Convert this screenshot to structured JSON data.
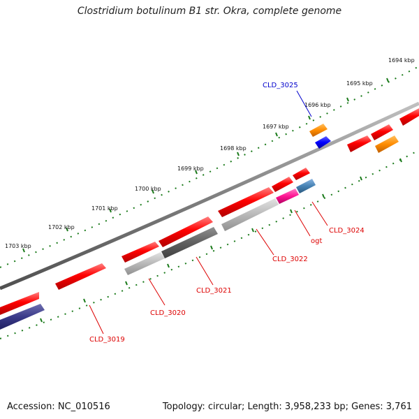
{
  "title": "Clostridium botulinum B1 str. Okra, complete genome",
  "footer": {
    "accession": "Accession: NC_010516",
    "summary": "Topology: circular; Length: 3,958,233 bp; Genes: 3,761"
  },
  "ticks": [
    "1694 kbp",
    "1695 kbp",
    "1696 kbp",
    "1697 kbp",
    "1698 kbp",
    "1699 kbp",
    "1700 kbp",
    "1701 kbp",
    "1702 kbp",
    "1703 kbp"
  ],
  "gene_labels": [
    "CLD_3025",
    "CLD_3024",
    "ogt",
    "CLD_3022",
    "CLD_3021",
    "CLD_3020",
    "CLD_3019"
  ],
  "colors": {
    "cds": "#ff0000",
    "highlight_gene": "#0000ff",
    "orange": "#ff8c00",
    "steelblue": "#4682b4",
    "magenta": "#ff1493",
    "gray_light": "#b5b5b5",
    "gray_dark": "#606060",
    "navy": "#3a3a8a",
    "tick": "#1a7a1a",
    "backbone": "#808080"
  }
}
